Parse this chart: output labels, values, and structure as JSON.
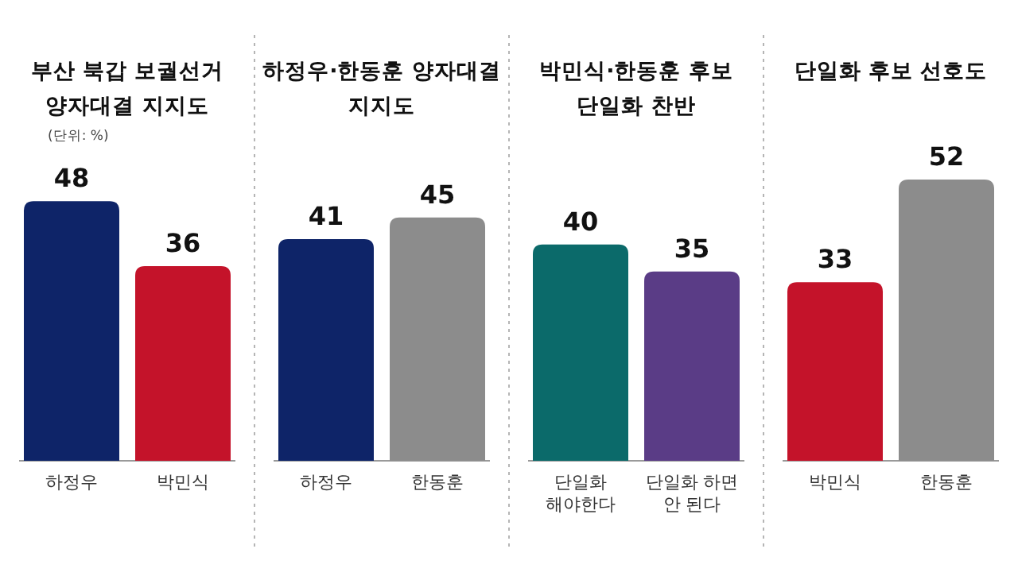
{
  "chart_data": [
    {
      "type": "bar",
      "title": "부산 북갑 보궐선거 양자대결 지지도",
      "subtitle": "(단위: %)",
      "categories": [
        "하정우",
        "박민식"
      ],
      "values": [
        48,
        36
      ],
      "colors": [
        "#0e2468",
        "#c4132a"
      ],
      "data_labels": true
    },
    {
      "type": "bar",
      "title": "하정우·한동훈 양자대결 지지도",
      "categories": [
        "하정우",
        "한동훈"
      ],
      "values": [
        41,
        45
      ],
      "colors": [
        "#0e2468",
        "#8c8c8c"
      ],
      "data_labels": true
    },
    {
      "type": "bar",
      "title": "박민식·한동훈 후보 단일화 찬반",
      "categories": [
        "단일화 해야한다",
        "단일화 하면 안 된다"
      ],
      "values": [
        40,
        35
      ],
      "colors": [
        "#0b6a6a",
        "#5a3c86"
      ],
      "data_labels": true
    },
    {
      "type": "bar",
      "title": "단일화 후보 선호도",
      "categories": [
        "박민식",
        "한동훈"
      ],
      "values": [
        33,
        52
      ],
      "colors": [
        "#c4132a",
        "#8c8c8c"
      ],
      "data_labels": true
    }
  ]
}
